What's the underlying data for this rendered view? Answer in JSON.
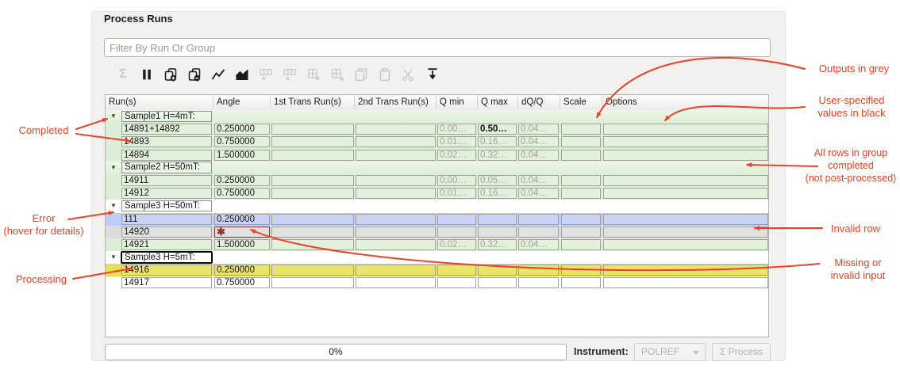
{
  "window": {
    "title": "Process Runs"
  },
  "filter": {
    "placeholder": "Filter By Run Or Group"
  },
  "toolbar": {
    "icons": [
      {
        "name": "sum-icon",
        "enabled": false
      },
      {
        "name": "pause-icon",
        "enabled": true
      },
      {
        "name": "add-group-icon",
        "enabled": true
      },
      {
        "name": "remove-group-icon",
        "enabled": true
      },
      {
        "name": "line-plot-icon",
        "enabled": true
      },
      {
        "name": "area-plot-icon",
        "enabled": true
      },
      {
        "name": "insert-row-icon",
        "enabled": false
      },
      {
        "name": "delete-row-icon",
        "enabled": false
      },
      {
        "name": "insert-cell-icon",
        "enabled": false
      },
      {
        "name": "delete-cell-icon",
        "enabled": false
      },
      {
        "name": "copy-icon",
        "enabled": false
      },
      {
        "name": "paste-icon",
        "enabled": false
      },
      {
        "name": "cut-icon",
        "enabled": false
      },
      {
        "name": "fill-down-icon",
        "enabled": true
      }
    ]
  },
  "table": {
    "columns": [
      "Run(s)",
      "Angle",
      "1st Trans Run(s)",
      "2nd Trans Run(s)",
      "Q min",
      "Q max",
      "dQ/Q",
      "Scale",
      "Options"
    ],
    "invalid_marker": "✱",
    "groups": [
      {
        "label": "Sample1 H=4mT:",
        "state": "completed",
        "focused": false,
        "rows": [
          {
            "state": "completed",
            "runs": "14891+14892",
            "angle": "0.250000",
            "qmin": "0.00…",
            "qmax": "0.50…",
            "dqq": "0.04…",
            "black": [
              "qmax"
            ]
          },
          {
            "state": "completed",
            "runs": "14893",
            "angle": "0.750000",
            "qmin": "0.01…",
            "qmax": "0.16…",
            "dqq": "0.04…"
          },
          {
            "state": "completed",
            "runs": "14894",
            "angle": "1.500000",
            "qmin": "0.02…",
            "qmax": "0.32…",
            "dqq": "0.04…"
          }
        ]
      },
      {
        "label": "Sample2 H=50mT:",
        "state": "completed",
        "focused": false,
        "rows": [
          {
            "state": "completed",
            "runs": "14911",
            "angle": "0.250000",
            "qmin": "0.00…",
            "qmax": "0.05…",
            "dqq": "0.04…"
          },
          {
            "state": "completed",
            "runs": "14912",
            "angle": "0.750000",
            "qmin": "0.01…",
            "qmax": "0.16…",
            "dqq": "0.04…"
          }
        ]
      },
      {
        "label": "Sample3 H=50mT:",
        "state": "plain",
        "focused": false,
        "rows": [
          {
            "state": "error",
            "runs": "111",
            "angle": "0.250000"
          },
          {
            "state": "invalid",
            "runs": "14920",
            "invalid": [
              "angle"
            ]
          },
          {
            "state": "completed",
            "runs": "14921",
            "angle": "1.500000",
            "qmin": "0.02…",
            "qmax": "0.32…",
            "dqq": "0.04…"
          }
        ]
      },
      {
        "label": "Sample3 H=5mT:",
        "state": "plain",
        "focused": true,
        "rows": [
          {
            "state": "processing",
            "runs": "14916",
            "angle": "0.250000"
          },
          {
            "state": "pending",
            "runs": "14917",
            "angle": "0.750000"
          }
        ]
      }
    ]
  },
  "footer": {
    "progress_label": "0%",
    "instrument_label": "Instrument:",
    "instrument_value": "POLREF",
    "process_button": "Σ Process"
  },
  "annotations": {
    "completed": "Completed",
    "error_line1": "Error",
    "error_line2": "(hover for details)",
    "processing": "Processing",
    "outputs": "Outputs in grey",
    "user_line1": "User-specified",
    "user_line2": "values in black",
    "group_line1": "All rows in group",
    "group_line2": "completed",
    "group_line3": "(not post-processed)",
    "invalid": "Invalid row",
    "missing_line1": "Missing or",
    "missing_line2": "invalid input"
  },
  "colors": {
    "annotation": "#ee4125",
    "completed_row": "#dcefd6",
    "error_row": "#bfccf4",
    "invalid_row": "#dcdcda",
    "processing_row": "#e7e052",
    "pending_row": "#ffffff",
    "output_value_text": "#a3a39b",
    "user_value_text": "#0e0e0e",
    "invalid_marker_color": "#8a392f"
  }
}
